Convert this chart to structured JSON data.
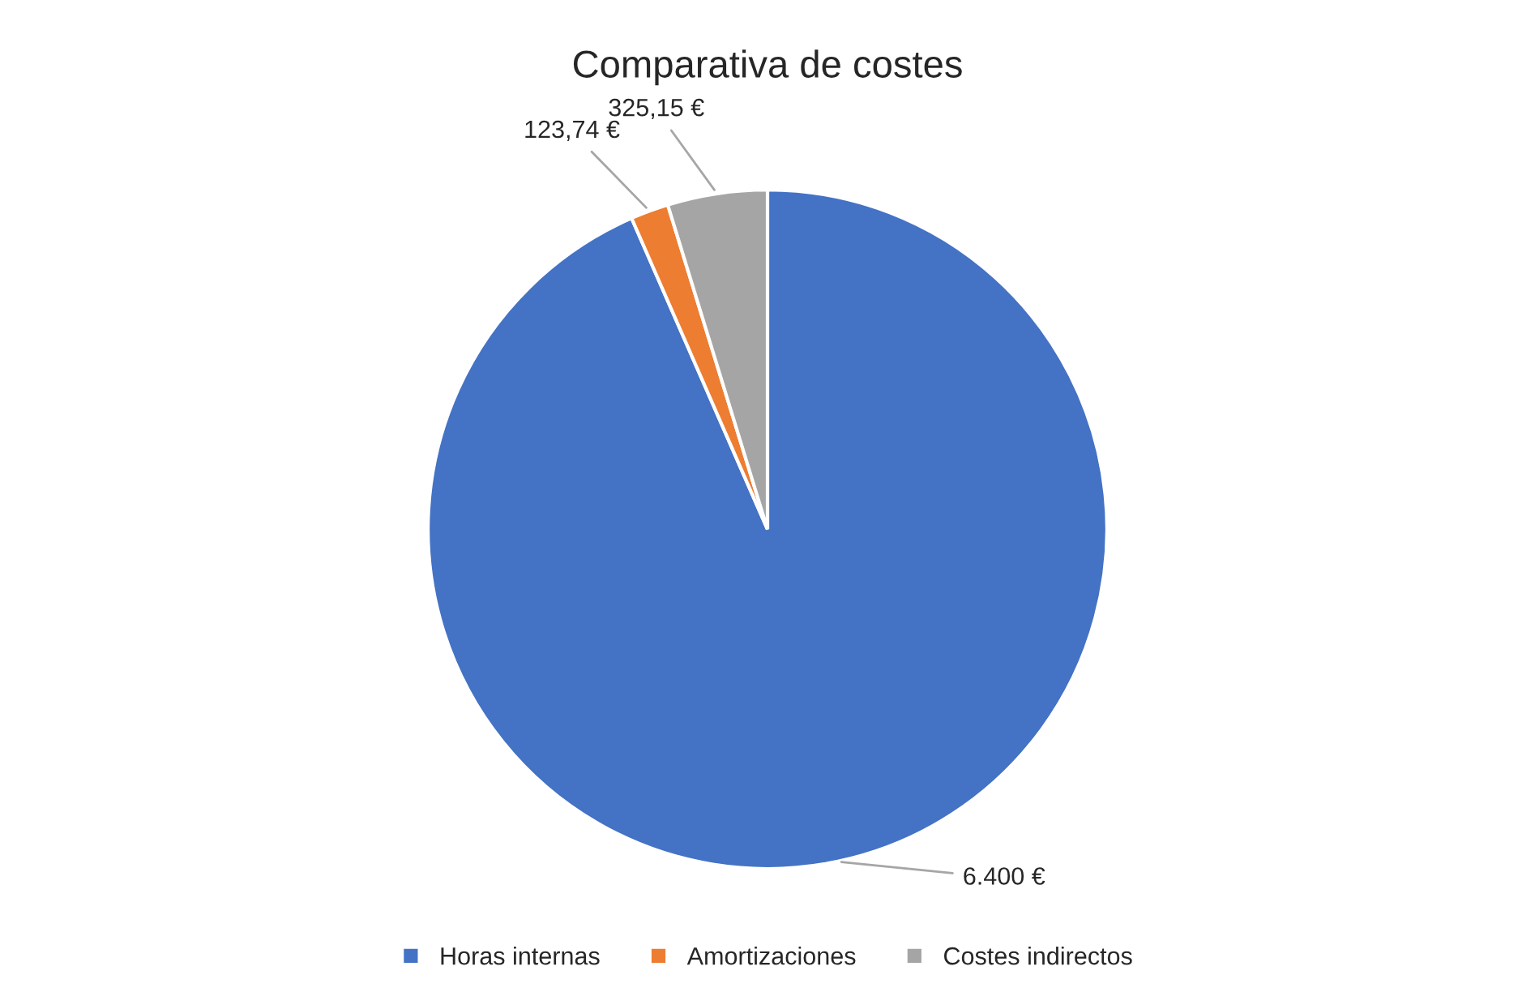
{
  "chart_data": {
    "type": "pie",
    "title": "Comparativa de costes",
    "categories": [
      "Horas internas",
      "Amortizaciones",
      "Costes indirectos"
    ],
    "values": [
      6400,
      123.74,
      325.15
    ],
    "colors": [
      "#4472c4",
      "#ed7d31",
      "#a5a5a5"
    ],
    "value_labels": [
      "6.400 €",
      "123,74 €",
      "325,15 €"
    ],
    "legend": "bottom"
  }
}
